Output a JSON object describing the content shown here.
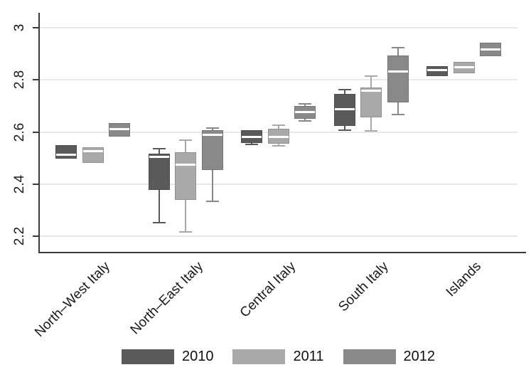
{
  "chart_data": {
    "type": "box",
    "title": "",
    "categories": [
      "North–West Italy",
      "North–East Italy",
      "Central Italy",
      "South Italy",
      "Islands"
    ],
    "yaxis": {
      "ticks": [
        3,
        2.8,
        2.6,
        2.4,
        2.2
      ],
      "tick_labels": [
        "3",
        "2.8",
        "2.6",
        "2.4",
        "2.2"
      ],
      "range_shown": [
        2.14,
        3.06
      ],
      "grid": true,
      "label_rotation_deg": 90
    },
    "xaxis": {
      "label_rotation_deg": 45
    },
    "legend": {
      "position": "bottom",
      "entries": [
        {
          "label": "2010",
          "color": "#5a5a5a"
        },
        {
          "label": "2011",
          "color": "#a9a9a9"
        },
        {
          "label": "2012",
          "color": "#898989"
        }
      ]
    },
    "median_line_color": "#ffffff",
    "series": [
      {
        "name": "2010",
        "color": "#5a5a5a",
        "boxes": [
          {
            "category": "North–West Italy",
            "whisker_low": 2.497,
            "q1": 2.497,
            "median": 2.515,
            "q3": 2.549,
            "whisker_high": 2.549
          },
          {
            "category": "North–East Italy",
            "whisker_low": 2.252,
            "q1": 2.378,
            "median": 2.505,
            "q3": 2.518,
            "whisker_high": 2.535
          },
          {
            "category": "Central Italy",
            "whisker_low": 2.553,
            "q1": 2.559,
            "median": 2.583,
            "q3": 2.606,
            "whisker_high": 2.61
          },
          {
            "category": "South Italy",
            "whisker_low": 2.608,
            "q1": 2.623,
            "median": 2.688,
            "q3": 2.745,
            "whisker_high": 2.762
          },
          {
            "category": "Islands",
            "whisker_low": 2.815,
            "q1": 2.815,
            "median": 2.84,
            "q3": 2.853,
            "whisker_high": 2.853
          }
        ]
      },
      {
        "name": "2011",
        "color": "#a9a9a9",
        "boxes": [
          {
            "category": "North–West Italy",
            "whisker_low": 2.481,
            "q1": 2.481,
            "median": 2.527,
            "q3": 2.542,
            "whisker_high": 2.542
          },
          {
            "category": "North–East Italy",
            "whisker_low": 2.217,
            "q1": 2.34,
            "median": 2.475,
            "q3": 2.522,
            "whisker_high": 2.57
          },
          {
            "category": "Central Italy",
            "whisker_low": 2.547,
            "q1": 2.554,
            "median": 2.582,
            "q3": 2.613,
            "whisker_high": 2.627
          },
          {
            "category": "South Italy",
            "whisker_low": 2.604,
            "q1": 2.656,
            "median": 2.761,
            "q3": 2.772,
            "whisker_high": 2.814
          },
          {
            "category": "Islands",
            "whisker_low": 2.825,
            "q1": 2.825,
            "median": 2.849,
            "q3": 2.87,
            "whisker_high": 2.87
          }
        ]
      },
      {
        "name": "2012",
        "color": "#898989",
        "boxes": [
          {
            "category": "North–West Italy",
            "whisker_low": 2.583,
            "q1": 2.583,
            "median": 2.612,
            "q3": 2.634,
            "whisker_high": 2.634
          },
          {
            "category": "North–East Italy",
            "whisker_low": 2.333,
            "q1": 2.454,
            "median": 2.59,
            "q3": 2.608,
            "whisker_high": 2.615
          },
          {
            "category": "Central Italy",
            "whisker_low": 2.643,
            "q1": 2.652,
            "median": 2.679,
            "q3": 2.699,
            "whisker_high": 2.707
          },
          {
            "category": "South Italy",
            "whisker_low": 2.667,
            "q1": 2.713,
            "median": 2.834,
            "q3": 2.893,
            "whisker_high": 2.923
          },
          {
            "category": "Islands",
            "whisker_low": 2.89,
            "q1": 2.89,
            "median": 2.918,
            "q3": 2.943,
            "whisker_high": 2.943
          }
        ]
      }
    ]
  }
}
